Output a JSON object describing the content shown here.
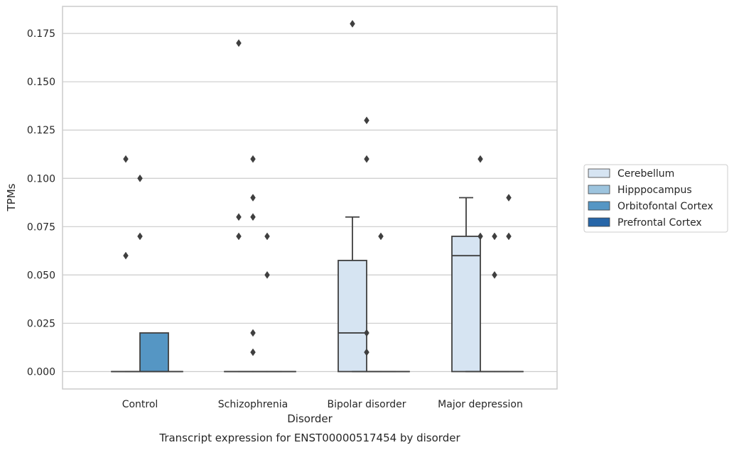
{
  "chart_data": {
    "type": "box",
    "title": "",
    "caption": "Transcript expression for ENST00000517454 by disorder",
    "xlabel": "Disorder",
    "ylabel": "TPMs",
    "ylim": [
      -0.009,
      0.189
    ],
    "yticks": [
      "0.000",
      "0.025",
      "0.050",
      "0.075",
      "0.100",
      "0.125",
      "0.150",
      "0.175"
    ],
    "categories": [
      "Control",
      "Schizophrenia",
      "Bipolar disorder",
      "Major depression"
    ],
    "grid": "horizontal",
    "legend_position": "right",
    "colors": {
      "Cerebellum": "#d6e4f2",
      "Hipppocampus": "#9dc4de",
      "Orbitofontal Cortex": "#5596c4",
      "Prefrontal Cortex": "#2766a8",
      "edge": "#3f3f3f",
      "grid": "#cccccc",
      "frame": "#cccccc"
    },
    "series": [
      {
        "name": "Cerebellum",
        "boxes": [
          {
            "q1": 0,
            "median": 0,
            "q3": 0,
            "whislo": 0,
            "whishi": 0,
            "fliers": [
              0.06,
              0.11
            ]
          },
          {
            "q1": 0,
            "median": 0,
            "q3": 0,
            "whislo": 0,
            "whishi": 0,
            "fliers": [
              0.17,
              0.07,
              0.08
            ]
          },
          {
            "q1": 0,
            "median": 0.02,
            "q3": 0.0575,
            "whislo": 0,
            "whishi": 0.08,
            "fliers": [
              0.18
            ]
          },
          {
            "q1": 0,
            "median": 0.06,
            "q3": 0.07,
            "whislo": 0,
            "whishi": 0.09,
            "fliers": []
          }
        ]
      },
      {
        "name": "Hipppocampus",
        "boxes": [
          {
            "q1": 0,
            "median": 0,
            "q3": 0,
            "whislo": 0,
            "whishi": 0,
            "fliers": [
              0.07,
              0.1
            ]
          },
          {
            "q1": 0,
            "median": 0,
            "q3": 0,
            "whislo": 0,
            "whishi": 0,
            "fliers": [
              0.11,
              0.09,
              0.08,
              0.02,
              0.01
            ]
          },
          {
            "q1": 0,
            "median": 0,
            "q3": 0,
            "whislo": 0,
            "whishi": 0,
            "fliers": [
              0.13,
              0.11,
              0.02,
              0.01
            ]
          },
          {
            "q1": 0,
            "median": 0,
            "q3": 0,
            "whislo": 0,
            "whishi": 0,
            "fliers": [
              0.11,
              0.07
            ]
          }
        ]
      },
      {
        "name": "Orbitofontal Cortex",
        "boxes": [
          {
            "q1": 0,
            "median": 0,
            "q3": 0.02,
            "whislo": 0,
            "whishi": 0.02,
            "fliers": []
          },
          {
            "q1": 0,
            "median": 0,
            "q3": 0,
            "whislo": 0,
            "whishi": 0,
            "fliers": [
              0.07,
              0.05
            ]
          },
          {
            "q1": 0,
            "median": 0,
            "q3": 0,
            "whislo": 0,
            "whishi": 0,
            "fliers": [
              0.07
            ]
          },
          {
            "q1": 0,
            "median": 0,
            "q3": 0,
            "whislo": 0,
            "whishi": 0,
            "fliers": [
              0.07,
              0.05
            ]
          }
        ]
      },
      {
        "name": "Prefrontal Cortex",
        "boxes": [
          {
            "q1": 0,
            "median": 0,
            "q3": 0,
            "whislo": 0,
            "whishi": 0,
            "fliers": []
          },
          {
            "q1": 0,
            "median": 0,
            "q3": 0,
            "whislo": 0,
            "whishi": 0,
            "fliers": []
          },
          {
            "q1": 0,
            "median": 0,
            "q3": 0,
            "whislo": 0,
            "whishi": 0,
            "fliers": []
          },
          {
            "q1": 0,
            "median": 0,
            "q3": 0,
            "whislo": 0,
            "whishi": 0,
            "fliers": [
              0.09,
              0.07
            ]
          }
        ]
      }
    ]
  }
}
